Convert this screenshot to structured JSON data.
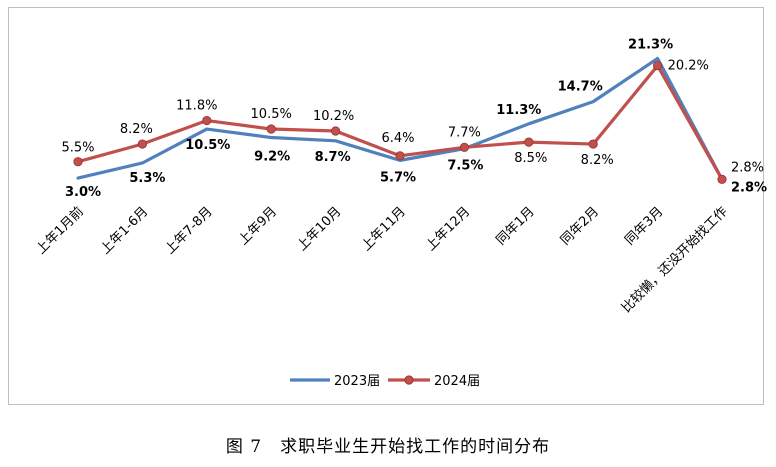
{
  "caption": "图 7　求职毕业生开始找工作的时间分布",
  "chart_data": {
    "type": "line",
    "categories": [
      "上年1月前",
      "上年1-6月",
      "上年7-8月",
      "上年9月",
      "上年10月",
      "上年11月",
      "上年12月",
      "同年1月",
      "同年2月",
      "同年3月",
      "比较懒，还没开始找工作"
    ],
    "series": [
      {
        "name": "2023届",
        "color": "#4f81bd",
        "values": [
          3.0,
          5.3,
          10.5,
          9.2,
          8.7,
          5.7,
          7.5,
          11.3,
          14.7,
          21.3,
          2.8
        ],
        "labels": [
          "3.0%",
          "5.3%",
          "10.5%",
          "9.2%",
          "8.7%",
          "5.7%",
          "7.5%",
          "11.3%",
          "14.7%",
          "21.3%",
          "2.8%"
        ]
      },
      {
        "name": "2024届",
        "color": "#c0504d",
        "values": [
          5.5,
          8.2,
          11.8,
          10.5,
          10.2,
          6.4,
          7.7,
          8.5,
          8.2,
          20.2,
          2.8
        ],
        "labels": [
          "5.5%",
          "8.2%",
          "11.8%",
          "10.5%",
          "10.2%",
          "6.4%",
          "7.7%",
          "8.5%",
          "8.2%",
          "20.2%",
          "2.8%"
        ]
      }
    ],
    "grid": false,
    "legend_position": "bottom"
  }
}
